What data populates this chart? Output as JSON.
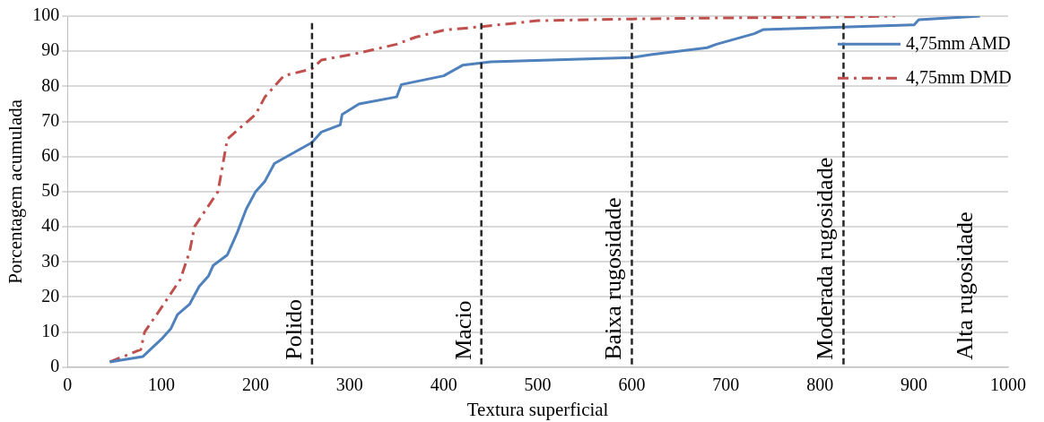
{
  "chart_data": {
    "type": "line",
    "xlabel": "Textura superficial",
    "ylabel": "Porcentagem acumulada",
    "xlim": [
      0,
      1000
    ],
    "xticks": [
      0,
      100,
      200,
      300,
      400,
      500,
      600,
      700,
      800,
      900,
      1000
    ],
    "ylim": [
      0,
      100
    ],
    "yticks": [
      0,
      10,
      20,
      30,
      40,
      50,
      60,
      70,
      80,
      90,
      100
    ],
    "grid": "y",
    "legend": "top right",
    "marker": "none",
    "series": [
      {
        "name": "4,75mm AMD",
        "color": "#4f81bd",
        "line_style": "solid",
        "x": [
          45,
          80,
          100,
          110,
          117,
          130,
          140,
          150,
          155,
          170,
          180,
          190,
          200,
          210,
          220,
          240,
          260,
          270,
          290,
          292,
          310,
          350,
          355,
          400,
          420,
          450,
          600,
          620,
          680,
          690,
          730,
          740,
          900,
          905,
          970
        ],
        "values": [
          1.5,
          3,
          8,
          11,
          15,
          18,
          23,
          26,
          29,
          32,
          38,
          45,
          50,
          53,
          58,
          61,
          64,
          67,
          69,
          72,
          75,
          77,
          80.5,
          83,
          86,
          87,
          88.2,
          89,
          91,
          92,
          95,
          96.2,
          97.5,
          99,
          100
        ]
      },
      {
        "name": "4,75mm DMD",
        "color": "#c0504d",
        "line_style": "dashed",
        "x": [
          45,
          78,
          82,
          100,
          120,
          130,
          135,
          150,
          160,
          170,
          200,
          210,
          230,
          260,
          270,
          310,
          350,
          370,
          400,
          440,
          500,
          600,
          700,
          800,
          880
        ],
        "values": [
          1.5,
          5,
          10,
          17,
          25,
          33,
          40,
          46,
          50,
          65,
          72,
          77,
          83,
          85,
          87.5,
          89.5,
          92,
          94,
          96,
          97,
          98.7,
          99.2,
          99.5,
          99.7,
          100
        ]
      }
    ],
    "ref_lines": [
      {
        "axis": "x",
        "value": 260,
        "label": "Polido",
        "color": "#262626",
        "line_style": "dashed"
      },
      {
        "axis": "x",
        "value": 440,
        "label": "Macio",
        "color": "#262626",
        "line_style": "dashed"
      },
      {
        "axis": "x",
        "value": 600,
        "label": "Baixa rugosidade",
        "color": "#262626",
        "line_style": "dashed"
      },
      {
        "axis": "x",
        "value": 825,
        "label": "Moderada rugosidade",
        "color": "#262626",
        "line_style": "dashed"
      }
    ],
    "annotations": [
      "Alta rugosidade"
    ]
  }
}
